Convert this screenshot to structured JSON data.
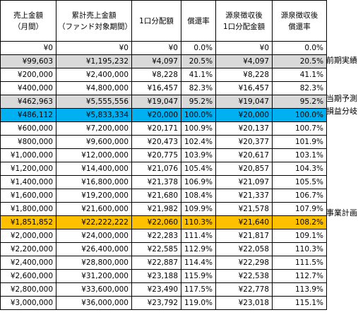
{
  "headers": [
    "売上金額\n（月間）",
    "累計売上金額\n（ファンド対象期間）",
    "1口分配額",
    "償還率",
    "源泉徴収後\n1口分配金額",
    "源泉徴収後\n償還率"
  ],
  "rows": [
    {
      "cells": [
        "¥0",
        "¥0",
        "¥0",
        "0.0%",
        "¥0",
        "0.0%"
      ],
      "style": "",
      "note": ""
    },
    {
      "cells": [
        "¥99,603",
        "¥1,195,232",
        "¥4,097",
        "20.5%",
        "¥4,097",
        "20.5%"
      ],
      "style": "gray",
      "note": "前期実績"
    },
    {
      "cells": [
        "¥200,000",
        "¥2,400,000",
        "¥8,228",
        "41.1%",
        "¥8,228",
        "41.1%"
      ],
      "style": "",
      "note": ""
    },
    {
      "cells": [
        "¥400,000",
        "¥4,800,000",
        "¥16,457",
        "82.3%",
        "¥16,457",
        "82.3%"
      ],
      "style": "",
      "note": ""
    },
    {
      "cells": [
        "¥462,963",
        "¥5,555,556",
        "¥19,047",
        "95.2%",
        "¥19,047",
        "95.2%"
      ],
      "style": "gray",
      "note": "当期予測"
    },
    {
      "cells": [
        "¥486,112",
        "¥5,833,334",
        "¥20,000",
        "100.0%",
        "¥20,000",
        "100.0%"
      ],
      "style": "cyan",
      "note": "損益分岐"
    },
    {
      "cells": [
        "¥600,000",
        "¥7,200,000",
        "¥20,171",
        "100.9%",
        "¥20,137",
        "100.7%"
      ],
      "style": "",
      "note": ""
    },
    {
      "cells": [
        "¥800,000",
        "¥9,600,000",
        "¥20,473",
        "102.4%",
        "¥20,377",
        "101.9%"
      ],
      "style": "",
      "note": ""
    },
    {
      "cells": [
        "¥1,000,000",
        "¥12,000,000",
        "¥20,775",
        "103.9%",
        "¥20,617",
        "103.1%"
      ],
      "style": "",
      "note": ""
    },
    {
      "cells": [
        "¥1,200,000",
        "¥14,400,000",
        "¥21,076",
        "105.4%",
        "¥20,857",
        "104.3%"
      ],
      "style": "",
      "note": ""
    },
    {
      "cells": [
        "¥1,400,000",
        "¥16,800,000",
        "¥21,378",
        "106.9%",
        "¥21,097",
        "105.5%"
      ],
      "style": "",
      "note": ""
    },
    {
      "cells": [
        "¥1,600,000",
        "¥19,200,000",
        "¥21,680",
        "108.4%",
        "¥21,337",
        "106.7%"
      ],
      "style": "",
      "note": ""
    },
    {
      "cells": [
        "¥1,800,000",
        "¥21,600,000",
        "¥21,982",
        "109.9%",
        "¥21,578",
        "107.9%"
      ],
      "style": "",
      "note": ""
    },
    {
      "cells": [
        "¥1,851,852",
        "¥22,222,222",
        "¥22,060",
        "110.3%",
        "¥21,640",
        "108.2%"
      ],
      "style": "orange",
      "note": "事業計画"
    },
    {
      "cells": [
        "¥2,000,000",
        "¥24,000,000",
        "¥22,283",
        "111.4%",
        "¥21,817",
        "109.1%"
      ],
      "style": "",
      "note": ""
    },
    {
      "cells": [
        "¥2,200,000",
        "¥26,400,000",
        "¥22,585",
        "112.9%",
        "¥22,058",
        "110.3%"
      ],
      "style": "",
      "note": ""
    },
    {
      "cells": [
        "¥2,400,000",
        "¥28,800,000",
        "¥22,887",
        "114.4%",
        "¥22,298",
        "111.5%"
      ],
      "style": "",
      "note": ""
    },
    {
      "cells": [
        "¥2,600,000",
        "¥31,200,000",
        "¥23,188",
        "115.9%",
        "¥22,538",
        "112.7%"
      ],
      "style": "",
      "note": ""
    },
    {
      "cells": [
        "¥2,800,000",
        "¥33,600,000",
        "¥23,490",
        "117.5%",
        "¥22,778",
        "113.9%"
      ],
      "style": "",
      "note": ""
    },
    {
      "cells": [
        "¥3,000,000",
        "¥36,000,000",
        "¥23,792",
        "119.0%",
        "¥23,018",
        "115.1%"
      ],
      "style": "",
      "note": ""
    }
  ]
}
